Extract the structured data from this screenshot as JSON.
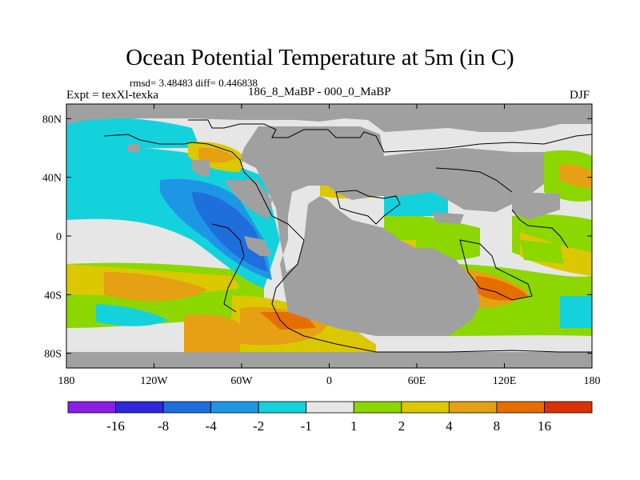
{
  "title": "Ocean Potential Temperature at 5m (in C)",
  "stats_text": "rmsd= 3.48483 diff= 0.446838",
  "expt_text": "Expt = texXl-texka",
  "difference_text": "186_8_MaBP - 000_0_MaBP",
  "season": "DJF",
  "map": {
    "land_color": "#a0a0a0",
    "background_color": "#e6e6e6",
    "outline_color": "#000000",
    "x_ticks": [
      {
        "lon": -180,
        "label": "180"
      },
      {
        "lon": -120,
        "label": "120W"
      },
      {
        "lon": -60,
        "label": "60W"
      },
      {
        "lon": 0,
        "label": "0"
      },
      {
        "lon": 60,
        "label": "60E"
      },
      {
        "lon": 120,
        "label": "120E"
      },
      {
        "lon": 180,
        "label": "180"
      }
    ],
    "y_ticks": [
      {
        "lat": 80,
        "label": "80N"
      },
      {
        "lat": 40,
        "label": "40N"
      },
      {
        "lat": 0,
        "label": "0"
      },
      {
        "lat": -40,
        "label": "40S"
      },
      {
        "lat": -80,
        "label": "80S"
      }
    ],
    "lon_range": [
      -180,
      180
    ],
    "lat_range": [
      -90,
      90
    ]
  },
  "colorbar": {
    "colors": [
      "#8c1ee6",
      "#2d28dc",
      "#1e6edc",
      "#1e96e6",
      "#14d2dc",
      "#e6e6e6",
      "#8cd700",
      "#dcc800",
      "#e6a014",
      "#e66e00",
      "#dc3200"
    ],
    "labels": [
      "-16",
      "-8",
      "-4",
      "-2",
      "-1",
      "1",
      "2",
      "4",
      "8",
      "16"
    ]
  }
}
